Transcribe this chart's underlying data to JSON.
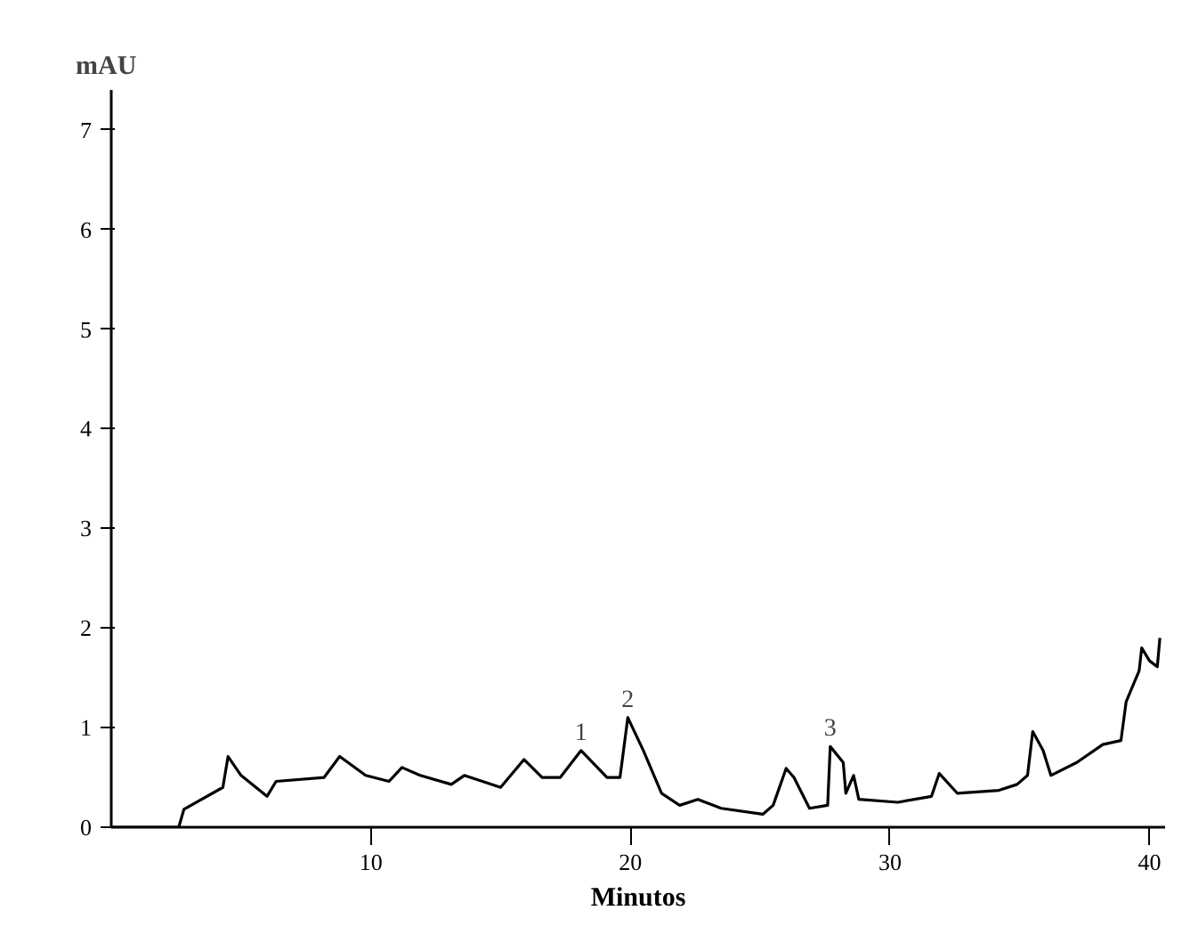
{
  "chart_data": {
    "type": "line",
    "ylabel": "mAU",
    "xlabel": "Minutos",
    "x": [
      0,
      2.6,
      2.8,
      4.3,
      4.5,
      5.0,
      6.0,
      6.35,
      8.2,
      8.8,
      9.8,
      10.7,
      11.2,
      11.9,
      13.1,
      13.6,
      15.0,
      15.9,
      16.6,
      17.3,
      18.1,
      19.1,
      19.6,
      19.9,
      20.5,
      21.2,
      21.9,
      22.6,
      23.5,
      25.1,
      25.5,
      26.0,
      26.3,
      26.9,
      27.6,
      27.7,
      28.2,
      28.3,
      28.6,
      28.8,
      30.3,
      31.6,
      31.9,
      32.6,
      34.2,
      34.9,
      35.3,
      35.5,
      35.9,
      36.2,
      37.2,
      38.2,
      38.9,
      39.1,
      39.6,
      39.7,
      40.0,
      40.3,
      40.4
    ],
    "series": [
      {
        "color": "#000000",
        "values": [
          0,
          0,
          0.18,
          0.4,
          0.71,
          0.52,
          0.31,
          0.46,
          0.5,
          0.71,
          0.52,
          0.46,
          0.6,
          0.52,
          0.43,
          0.52,
          0.4,
          0.68,
          0.5,
          0.5,
          0.77,
          0.5,
          0.5,
          1.1,
          0.77,
          0.34,
          0.22,
          0.28,
          0.19,
          0.13,
          0.22,
          0.59,
          0.5,
          0.19,
          0.22,
          0.81,
          0.65,
          0.34,
          0.52,
          0.28,
          0.25,
          0.31,
          0.54,
          0.34,
          0.37,
          0.43,
          0.52,
          0.96,
          0.77,
          0.52,
          0.65,
          0.83,
          0.87,
          1.26,
          1.57,
          1.8,
          1.67,
          1.61,
          1.9
        ]
      }
    ],
    "annotations": [
      {
        "text": "1",
        "x": 18.1,
        "y": 0.77
      },
      {
        "text": "2",
        "x": 19.9,
        "y": 1.1
      },
      {
        "text": "3",
        "x": 27.7,
        "y": 0.81
      }
    ],
    "xlim": [
      0,
      40.6
    ],
    "ylim": [
      0,
      7.4
    ],
    "xticks": [
      10,
      20,
      30,
      40
    ],
    "yticks": [
      0,
      1,
      2,
      3,
      4,
      5,
      6,
      7
    ],
    "grid": false
  }
}
